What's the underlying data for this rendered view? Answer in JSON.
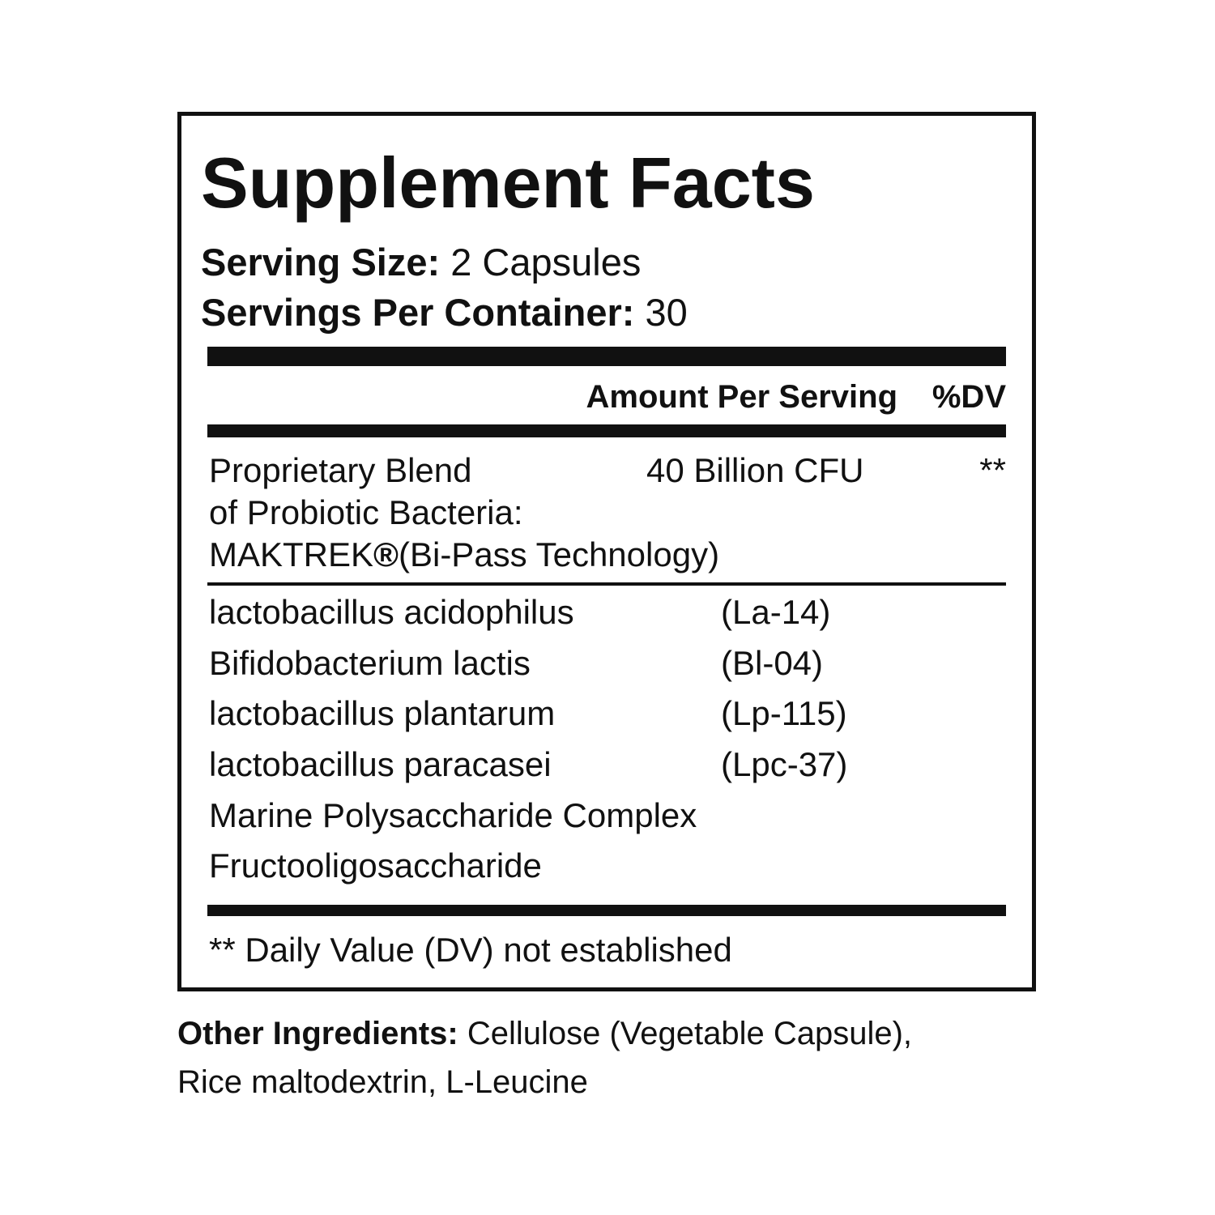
{
  "title": "Supplement Facts",
  "serving_size": {
    "label": "Serving Size:",
    "value": "2 Capsules"
  },
  "servings_per_container": {
    "label": "Servings Per Container:",
    "value": "30"
  },
  "header": {
    "amount": "Amount Per Serving",
    "dv": "%DV"
  },
  "blend": {
    "lines": [
      "Proprietary Blend",
      "of Probiotic Bacteria:",
      "MAKTREK",
      "(Bi-Pass Technology)"
    ],
    "registered": "®",
    "amount": "40 Billion CFU",
    "dv": "**"
  },
  "ingredients": [
    {
      "name": "lactobacillus acidophilus",
      "strain": "(La-14)"
    },
    {
      "name": "Bifidobacterium lactis",
      "strain": "(Bl-04)"
    },
    {
      "name": "lactobacillus plantarum",
      "strain": "(Lp-115)"
    },
    {
      "name": "lactobacillus paracasei",
      "strain": "(Lpc-37)"
    },
    {
      "name": "Marine Polysaccharide Complex",
      "strain": ""
    },
    {
      "name": "Fructooligosaccharide",
      "strain": ""
    }
  ],
  "footnote": "** Daily Value (DV) not established",
  "other_ingredients": {
    "label": "Other Ingredients:",
    "line1": "Cellulose (Vegetable Capsule),",
    "line2": "Rice maltodextrin, L-Leucine"
  }
}
